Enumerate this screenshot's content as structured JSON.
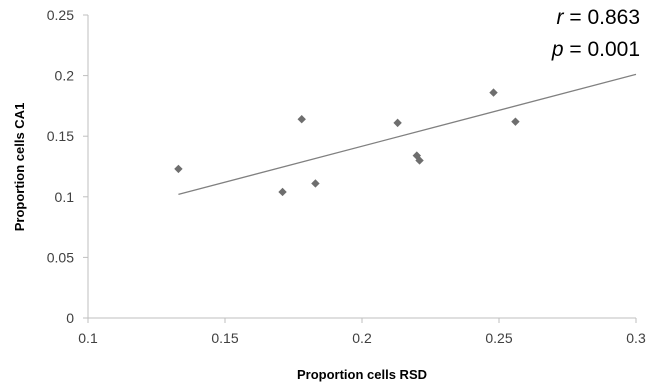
{
  "chart_data": {
    "type": "scatter",
    "title": "",
    "xlabel": "Proportion  cells RSD",
    "ylabel": "Proportion  cells CA1",
    "xlim": [
      0.1,
      0.3
    ],
    "ylim": [
      0,
      0.25
    ],
    "xticks": [
      0.1,
      0.15,
      0.2,
      0.25,
      0.3
    ],
    "xtick_labels": [
      "0.1",
      "0.15",
      "0.2",
      "0.25",
      "0.3"
    ],
    "yticks": [
      0,
      0.05,
      0.1,
      0.15,
      0.2,
      0.25
    ],
    "ytick_labels": [
      "0",
      "0.05",
      "0.1",
      "0.15",
      "0.2",
      "0.25"
    ],
    "grid": false,
    "legend": "none",
    "marker": "diamond",
    "colors": {
      "marker": "#6e6e6e",
      "trendline": "#808080",
      "axis": "#bfbfbf",
      "text": "#000000"
    },
    "series": [
      {
        "x": [
          0.133,
          0.171,
          0.178,
          0.183,
          0.213,
          0.22,
          0.221,
          0.248,
          0.256
        ],
        "y": [
          0.123,
          0.104,
          0.164,
          0.111,
          0.161,
          0.134,
          0.13,
          0.186,
          0.162
        ]
      }
    ],
    "trendline": {
      "type": "linear",
      "x": [
        0.133,
        0.3
      ],
      "y": [
        0.102,
        0.201
      ]
    },
    "annotations": [
      {
        "symbol": "r",
        "text": " = 0.863"
      },
      {
        "symbol": "p",
        "text": " = 0.001"
      }
    ]
  }
}
